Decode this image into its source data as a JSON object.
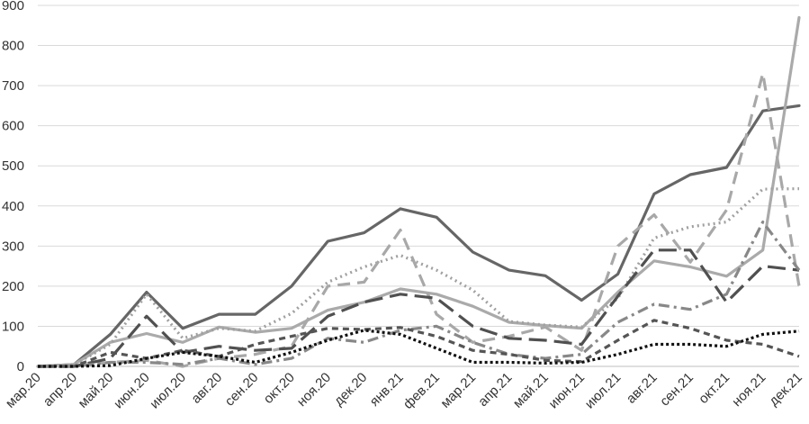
{
  "chart_data": {
    "type": "line",
    "title": "",
    "xlabel": "",
    "ylabel": "",
    "ylim": [
      0,
      900
    ],
    "y_ticks": [
      "0",
      "100",
      "200",
      "300",
      "400",
      "500",
      "600",
      "700",
      "800",
      "900"
    ],
    "grid": "horizontal",
    "legend": "none",
    "categories": [
      "мар.20",
      "апр.20",
      "май.20",
      "июн.20",
      "июл.20",
      "авг.20",
      "сен.20",
      "окт.20",
      "ноя.20",
      "дек.20",
      "янв.21",
      "фев.21",
      "мар.21",
      "апр.21",
      "май.21",
      "июн.21",
      "июл.21",
      "авг.21",
      "сен.21",
      "окт.21",
      "ноя.21",
      "дек.21"
    ],
    "series": [
      {
        "color": "#666666",
        "style": "solid",
        "values": [
          0,
          5,
          80,
          185,
          95,
          130,
          130,
          200,
          312,
          333,
          393,
          372,
          285,
          240,
          226,
          165,
          230,
          430,
          478,
          496,
          637,
          650
        ]
      },
      {
        "color": "#aaaaaa",
        "style": "solid",
        "values": [
          0,
          5,
          60,
          82,
          60,
          98,
          85,
          95,
          140,
          160,
          193,
          180,
          150,
          110,
          102,
          95,
          185,
          263,
          248,
          225,
          290,
          870
        ]
      },
      {
        "color": "#a0a0a0",
        "style": "dotted",
        "values": [
          0,
          4,
          55,
          180,
          70,
          95,
          88,
          132,
          210,
          248,
          277,
          240,
          190,
          112,
          103,
          98,
          170,
          320,
          348,
          360,
          442,
          443
        ]
      },
      {
        "color": "#a8a8a8",
        "style": "dash",
        "values": [
          0,
          0,
          10,
          15,
          0,
          20,
          30,
          50,
          200,
          210,
          340,
          130,
          60,
          75,
          98,
          40,
          300,
          378,
          260,
          390,
          730,
          200
        ]
      },
      {
        "color": "#505050",
        "style": "longdash",
        "values": [
          0,
          0,
          20,
          125,
          35,
          50,
          40,
          45,
          125,
          160,
          180,
          170,
          100,
          70,
          65,
          55,
          175,
          290,
          290,
          160,
          250,
          240
        ]
      },
      {
        "color": "#888888",
        "style": "dashdot",
        "values": [
          0,
          0,
          10,
          10,
          5,
          20,
          5,
          20,
          70,
          60,
          90,
          100,
          60,
          30,
          20,
          30,
          110,
          155,
          142,
          180,
          360,
          240
        ]
      },
      {
        "color": "#555555",
        "style": "shortdash",
        "values": [
          0,
          0,
          35,
          20,
          40,
          25,
          55,
          75,
          95,
          92,
          97,
          75,
          40,
          30,
          15,
          12,
          65,
          115,
          95,
          65,
          55,
          25
        ]
      },
      {
        "color": "#111111",
        "style": "densedot",
        "values": [
          0,
          0,
          2,
          20,
          35,
          25,
          10,
          35,
          65,
          90,
          80,
          45,
          10,
          10,
          8,
          10,
          30,
          55,
          55,
          50,
          80,
          88
        ]
      }
    ]
  }
}
